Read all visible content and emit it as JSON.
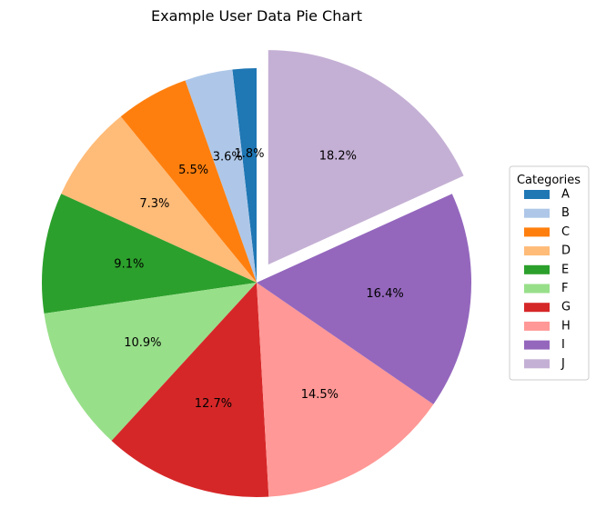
{
  "chart_data": {
    "type": "pie",
    "title": "Example User Data Pie Chart",
    "legend": {
      "title": "Categories",
      "placement": "center-right"
    },
    "start_angle_deg": 90,
    "direction": "counterclockwise",
    "exploded": [
      "J"
    ],
    "slices": [
      {
        "label": "A",
        "value": 1.8,
        "pct_label": "1.8%",
        "color": "#1f77b4"
      },
      {
        "label": "B",
        "value": 3.6,
        "pct_label": "3.6%",
        "color": "#aec7e8"
      },
      {
        "label": "C",
        "value": 5.5,
        "pct_label": "5.5%",
        "color": "#ff7f0e"
      },
      {
        "label": "D",
        "value": 7.3,
        "pct_label": "7.3%",
        "color": "#ffbb78"
      },
      {
        "label": "E",
        "value": 9.1,
        "pct_label": "9.1%",
        "color": "#2ca02c"
      },
      {
        "label": "F",
        "value": 10.9,
        "pct_label": "10.9%",
        "color": "#98df8a"
      },
      {
        "label": "G",
        "value": 12.7,
        "pct_label": "12.7%",
        "color": "#d62728"
      },
      {
        "label": "H",
        "value": 14.5,
        "pct_label": "14.5%",
        "color": "#ff9896"
      },
      {
        "label": "I",
        "value": 16.4,
        "pct_label": "16.4%",
        "color": "#9467bd"
      },
      {
        "label": "J",
        "value": 18.2,
        "pct_label": "18.2%",
        "color": "#c5b0d5"
      }
    ]
  }
}
